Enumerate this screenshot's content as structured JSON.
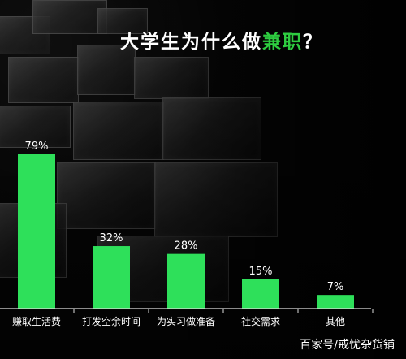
{
  "title": {
    "prefix": "大学生为什么做",
    "highlight": "兼职",
    "suffix": "？"
  },
  "watermark": "百家号/戒忧杂货铺",
  "colors": {
    "bar": "#2ee05a",
    "axis": "#dddddd",
    "text": "#ffffff",
    "highlight": "#2ecc40"
  },
  "chart_data": {
    "type": "bar",
    "categories": [
      "赚取生活费",
      "打发空余时间",
      "为实习做准备",
      "社交需求",
      "其他"
    ],
    "values": [
      79,
      32,
      28,
      15,
      7
    ],
    "data_labels": [
      "79%",
      "32%",
      "28%",
      "15%",
      "7%"
    ],
    "title": "大学生为什么做兼职？",
    "xlabel": "",
    "ylabel": "",
    "ylim": [
      0,
      79
    ],
    "grid": false,
    "legend": "none"
  }
}
